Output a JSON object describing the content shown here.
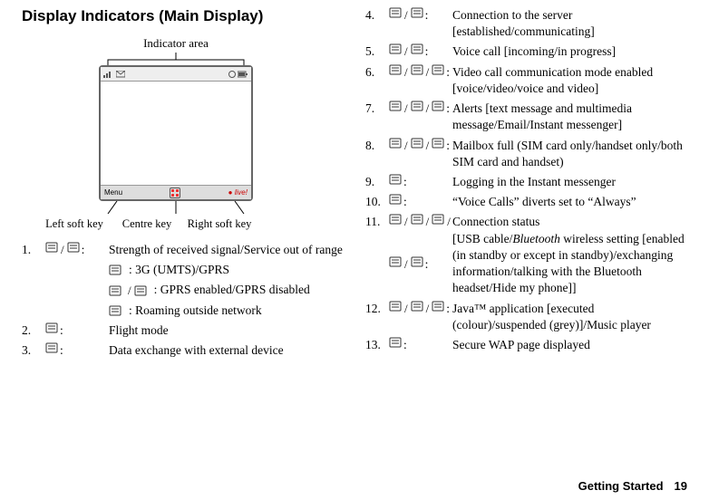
{
  "title": "Display Indicators (Main Display)",
  "figure": {
    "indicator_area_label": "Indicator area",
    "soft_left": "Menu",
    "soft_right": "live!",
    "left_soft_key": "Left soft key",
    "centre_key": "Centre key",
    "right_soft_key": "Right soft key"
  },
  "legend_left": [
    {
      "num": "1.",
      "desc": "Strength of received signal/Service out of range",
      "icon_count": 2
    },
    {
      "num": "2.",
      "desc": "Flight mode",
      "icon_count": 1
    },
    {
      "num": "3.",
      "desc": "Data exchange with external device",
      "icon_count": 1
    }
  ],
  "legend_left_sub": [
    {
      "label": ": 3G (UMTS)/GPRS",
      "icon_count": 1
    },
    {
      "label": ": GPRS enabled/GPRS disabled",
      "icon_count": 2
    },
    {
      "label": ": Roaming outside network",
      "icon_count": 1
    }
  ],
  "legend_right": [
    {
      "num": "4.",
      "desc": "Connection to the server [established/communicating]",
      "icon_count": 2
    },
    {
      "num": "5.",
      "desc": "Voice call [incoming/in progress]",
      "icon_count": 2
    },
    {
      "num": "6.",
      "desc": "Video call communication mode enabled [voice/video/voice and video]",
      "icon_count": 3
    },
    {
      "num": "7.",
      "desc": "Alerts [text message and multimedia message/Email/Instant messenger]",
      "icon_count": 3
    },
    {
      "num": "8.",
      "desc": "Mailbox full (SIM card only/handset only/both SIM card and handset)",
      "icon_count": 3
    },
    {
      "num": "9.",
      "desc": "Logging in the Instant messenger",
      "icon_count": 1
    },
    {
      "num": "10.",
      "desc": "“Voice Calls” diverts set to “Always”",
      "icon_count": 1
    },
    {
      "num": "11.",
      "desc_html": "Connection status<br>[USB cable/<span class=\"italic\">Bluetooth</span> wireless setting [enabled (in standby or except in standby)/exchanging information/talking with the Bluetooth headset/Hide my phone]]",
      "icon_count": 5
    },
    {
      "num": "12.",
      "desc": "Java™ application [executed (colour)/suspended (grey)]/Music player",
      "icon_count": 3
    },
    {
      "num": "13.",
      "desc": "Secure WAP page displayed",
      "icon_count": 1
    }
  ],
  "footer": {
    "label": "Getting Started",
    "page": "19"
  },
  "colors": {
    "icon_stroke": "#333",
    "icon_fill": "#555"
  }
}
